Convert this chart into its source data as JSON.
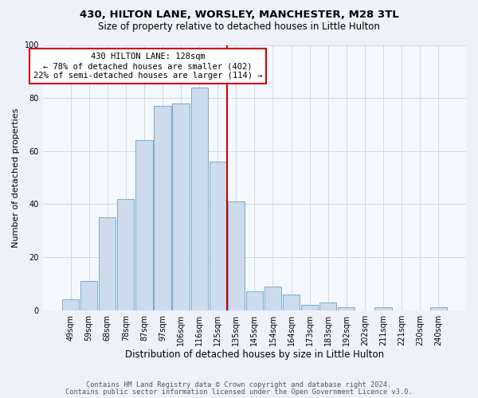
{
  "title1": "430, HILTON LANE, WORSLEY, MANCHESTER, M28 3TL",
  "title2": "Size of property relative to detached houses in Little Hulton",
  "xlabel": "Distribution of detached houses by size in Little Hulton",
  "ylabel": "Number of detached properties",
  "categories": [
    "49sqm",
    "59sqm",
    "68sqm",
    "78sqm",
    "87sqm",
    "97sqm",
    "106sqm",
    "116sqm",
    "125sqm",
    "135sqm",
    "145sqm",
    "154sqm",
    "164sqm",
    "173sqm",
    "183sqm",
    "192sqm",
    "202sqm",
    "211sqm",
    "221sqm",
    "230sqm",
    "240sqm"
  ],
  "values": [
    4,
    11,
    35,
    42,
    64,
    77,
    78,
    84,
    56,
    41,
    7,
    9,
    6,
    2,
    3,
    1,
    0,
    1,
    0,
    0,
    1
  ],
  "bar_color": "#ccdcec",
  "bar_edge_color": "#7aaac8",
  "line_x_index": 8.5,
  "annotation_text": "430 HILTON LANE: 128sqm\n← 78% of detached houses are smaller (402)\n22% of semi-detached houses are larger (114) →",
  "footer1": "Contains HM Land Registry data © Crown copyright and database right 2024.",
  "footer2": "Contains public sector information licensed under the Open Government Licence v3.0.",
  "bg_color": "#eef2f8",
  "plot_bg_color": "#f5f8fc",
  "grid_color": "#c8d4e0",
  "ylim": [
    0,
    100
  ],
  "annotation_box_color": "#cc0000",
  "line_color": "#cc0000",
  "title1_fontsize": 9.5,
  "title2_fontsize": 8.5,
  "ylabel_fontsize": 8,
  "xlabel_fontsize": 8.5,
  "tick_fontsize": 7,
  "footer_fontsize": 6.2
}
